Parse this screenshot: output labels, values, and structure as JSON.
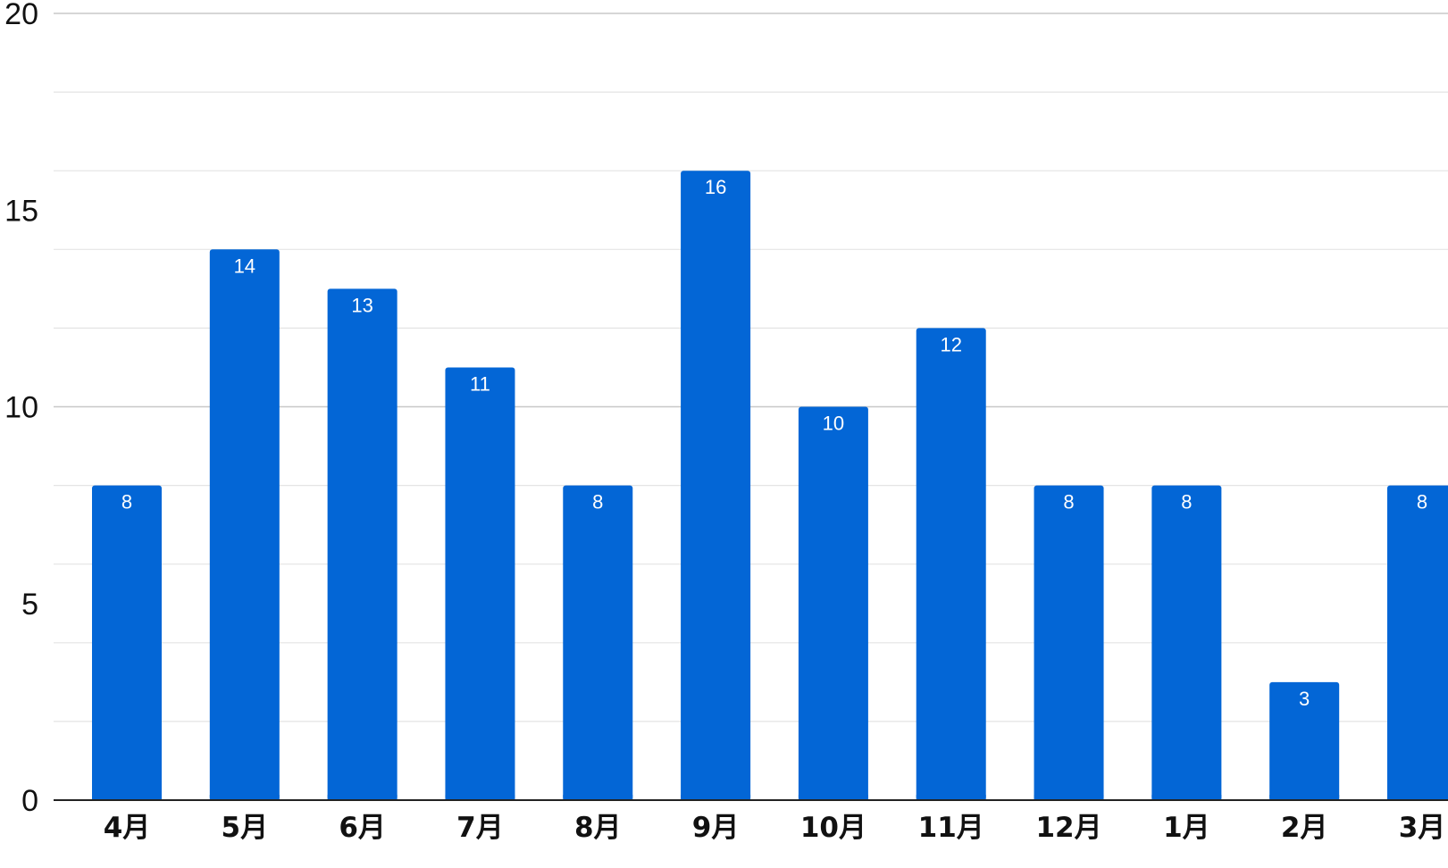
{
  "chart_data": {
    "type": "bar",
    "title": "",
    "xlabel": "",
    "ylabel": "",
    "categories": [
      "4月",
      "5月",
      "6月",
      "7月",
      "8月",
      "9月",
      "10月",
      "11月",
      "12月",
      "1月",
      "2月",
      "3月"
    ],
    "values": [
      8,
      14,
      13,
      11,
      8,
      16,
      10,
      12,
      8,
      8,
      3,
      8
    ],
    "ylim": [
      0,
      20
    ],
    "yticks": [
      "0",
      "5",
      "10",
      "15",
      "20"
    ],
    "grid": true,
    "data_labels": true,
    "bar_color": "#0366d6",
    "gridline_color": "#d0d0d0",
    "axis_color": "#222222"
  }
}
